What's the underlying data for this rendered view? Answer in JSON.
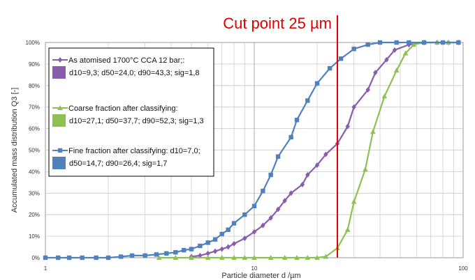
{
  "chart_data": {
    "type": "line",
    "x_scale": "log",
    "xlim": [
      1,
      100
    ],
    "ylim": [
      0,
      100
    ],
    "xlabel": "Particle diameter d  /µm",
    "ylabel": "Accumulated mass distribution Q3 [-]",
    "x_ticks": [
      "1",
      "10",
      "100"
    ],
    "y_ticks": [
      "0%",
      "10%",
      "20%",
      "30%",
      "40%",
      "50%",
      "60%",
      "70%",
      "80%",
      "90%",
      "100%"
    ],
    "grid": true,
    "legend_position": "top-left",
    "annotation": {
      "text": "Cut point 25 µm",
      "x": 25,
      "color": "#e00000"
    },
    "series": [
      {
        "name_lines": [
          "As atomised 1700°C CCA 12 bar;:",
          "d10=9,3; d50=24,0; d90=43,3; sig=1,8"
        ],
        "color": "#8a5cad",
        "marker": "diamond",
        "points": [
          [
            5.0,
            0.5
          ],
          [
            5.5,
            1
          ],
          [
            6,
            2
          ],
          [
            6.5,
            3
          ],
          [
            7,
            4
          ],
          [
            7.5,
            5
          ],
          [
            8,
            6.5
          ],
          [
            9,
            9
          ],
          [
            10,
            12
          ],
          [
            11,
            15
          ],
          [
            12,
            18.5
          ],
          [
            13,
            22.5
          ],
          [
            14,
            26.5
          ],
          [
            15,
            30
          ],
          [
            17,
            34
          ],
          [
            18,
            38.5
          ],
          [
            20,
            43
          ],
          [
            22,
            48
          ],
          [
            25,
            53
          ],
          [
            28,
            61
          ],
          [
            30,
            70
          ],
          [
            35,
            78
          ],
          [
            38,
            86
          ],
          [
            43,
            92
          ],
          [
            47,
            96.5
          ],
          [
            55,
            99
          ],
          [
            65,
            100
          ],
          [
            75,
            100
          ],
          [
            85,
            100
          ],
          [
            95,
            100
          ]
        ]
      },
      {
        "name_lines": [
          "Coarse fraction after classifying:",
          "d10=27,1; d50=37,7; d90=52,3; sig=1,3"
        ],
        "color": "#8dc152",
        "marker": "triangle",
        "points": [
          [
            3.5,
            0
          ],
          [
            4.2,
            0
          ],
          [
            5,
            0
          ],
          [
            6,
            0
          ],
          [
            7,
            0
          ],
          [
            8,
            0
          ],
          [
            9,
            0
          ],
          [
            10,
            0
          ],
          [
            12,
            0
          ],
          [
            14,
            0
          ],
          [
            16,
            0
          ],
          [
            18,
            0
          ],
          [
            20,
            0
          ],
          [
            22,
            0.5
          ],
          [
            25,
            4.5
          ],
          [
            28,
            13
          ],
          [
            30,
            26
          ],
          [
            34,
            41
          ],
          [
            37,
            58.5
          ],
          [
            42,
            75
          ],
          [
            48,
            87
          ],
          [
            53,
            95
          ],
          [
            58,
            99
          ],
          [
            65,
            100
          ],
          [
            75,
            100
          ],
          [
            85,
            100
          ],
          [
            95,
            100
          ]
        ]
      },
      {
        "name_lines": [
          "Fine fraction after classifying: d10=7,0;",
          "d50=14,7; d90=26,4; sig=1,7"
        ],
        "color": "#4f81bd",
        "marker": "square",
        "points": [
          [
            1,
            0
          ],
          [
            1.15,
            0
          ],
          [
            1.3,
            0
          ],
          [
            1.5,
            0
          ],
          [
            1.75,
            0
          ],
          [
            2,
            0
          ],
          [
            2.3,
            0.5
          ],
          [
            2.6,
            1
          ],
          [
            3,
            1
          ],
          [
            3.4,
            1.5
          ],
          [
            3.8,
            2
          ],
          [
            4.2,
            2.5
          ],
          [
            4.6,
            3.5
          ],
          [
            5.0,
            4
          ],
          [
            5.5,
            5.5
          ],
          [
            6,
            7
          ],
          [
            6.5,
            8.5
          ],
          [
            7,
            11
          ],
          [
            7.5,
            13
          ],
          [
            8,
            16
          ],
          [
            9,
            20
          ],
          [
            10,
            24
          ],
          [
            11,
            31
          ],
          [
            12,
            38.5
          ],
          [
            13,
            47
          ],
          [
            15,
            56
          ],
          [
            16,
            64
          ],
          [
            18,
            73
          ],
          [
            20,
            81
          ],
          [
            23,
            88
          ],
          [
            26,
            92.5
          ],
          [
            30,
            97
          ],
          [
            35,
            99
          ],
          [
            40,
            100
          ],
          [
            48,
            100
          ],
          [
            55,
            100
          ],
          [
            65,
            100
          ],
          [
            80,
            100
          ],
          [
            95,
            100
          ]
        ]
      }
    ]
  }
}
